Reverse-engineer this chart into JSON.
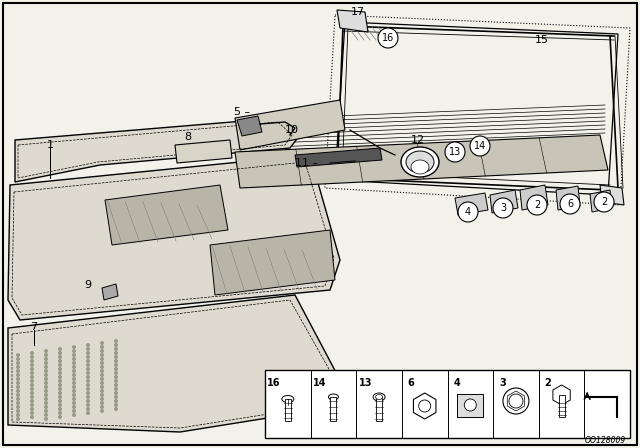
{
  "bg_color": "#f2f2ea",
  "diagram_id": "OO128009",
  "label_color": "#000000",
  "line_color": "#000000",
  "part_fill": "#e8e4dc",
  "part_fill2": "#d4cfc4",
  "part_fill3": "#c8c4b8"
}
